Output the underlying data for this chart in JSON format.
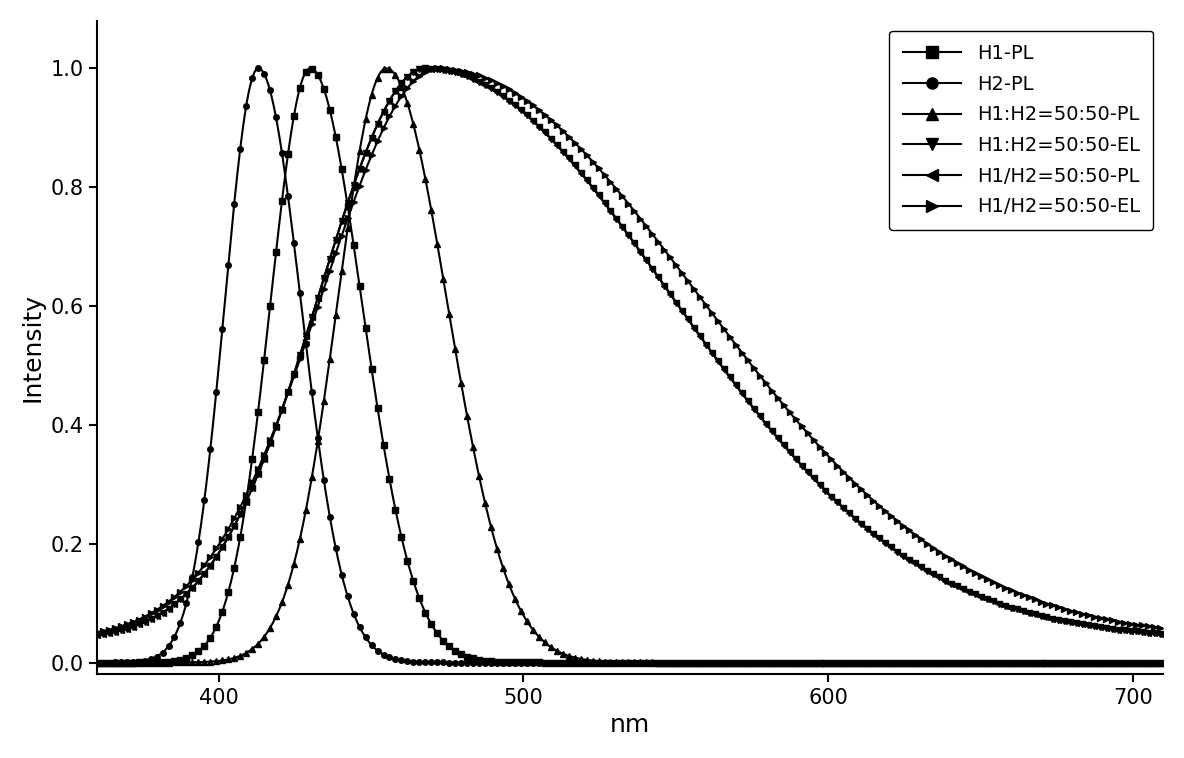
{
  "xlabel": "nm",
  "ylabel": "Intensity",
  "xlim": [
    360,
    710
  ],
  "ylim": [
    -0.02,
    1.08
  ],
  "xticks": [
    400,
    500,
    600,
    700
  ],
  "yticks": [
    0.0,
    0.2,
    0.4,
    0.6,
    0.8,
    1.0
  ],
  "curves": [
    {
      "label": "H1-PL",
      "peak": 430,
      "sl": 13,
      "sr": 17,
      "baseline": 0.0,
      "marker": "s",
      "msize": 4,
      "mstep": 2
    },
    {
      "label": "H2-PL",
      "peak": 413,
      "sl": 11,
      "sr": 14,
      "baseline": 0.0,
      "marker": "o",
      "msize": 4,
      "mstep": 2
    },
    {
      "label": "H1:H2=50:50-PL",
      "peak": 455,
      "sl": 16,
      "sr": 20,
      "baseline": 0.0,
      "marker": "^",
      "msize": 4,
      "mstep": 2
    },
    {
      "label": "H1:H2=50:50-EL",
      "peak": 468,
      "sl": 35,
      "sr": 80,
      "baseline": 0.04,
      "marker": "v",
      "msize": 4,
      "mstep": 2
    },
    {
      "label": "H1/H2=50:50-PL",
      "peak": 468,
      "sl": 35,
      "sr": 80,
      "baseline": 0.04,
      "marker": "<",
      "msize": 4,
      "mstep": 2
    },
    {
      "label": "H1/H2=50:50-EL",
      "peak": 472,
      "sl": 38,
      "sr": 85,
      "baseline": 0.04,
      "marker": ">",
      "msize": 4,
      "mstep": 2
    }
  ],
  "legend_entries": [
    [
      "H1-PL",
      "s"
    ],
    [
      "H2-PL",
      "o"
    ],
    [
      "H1:H2=50:50-PL",
      "^"
    ],
    [
      "H1:H2=50:50-EL",
      "v"
    ],
    [
      "H1/H2=50:50-PL",
      "<"
    ],
    [
      "H1/H2=50:50-EL",
      ">"
    ]
  ],
  "background_color": "#ffffff",
  "figsize": [
    11.84,
    7.58
  ],
  "dpi": 100
}
